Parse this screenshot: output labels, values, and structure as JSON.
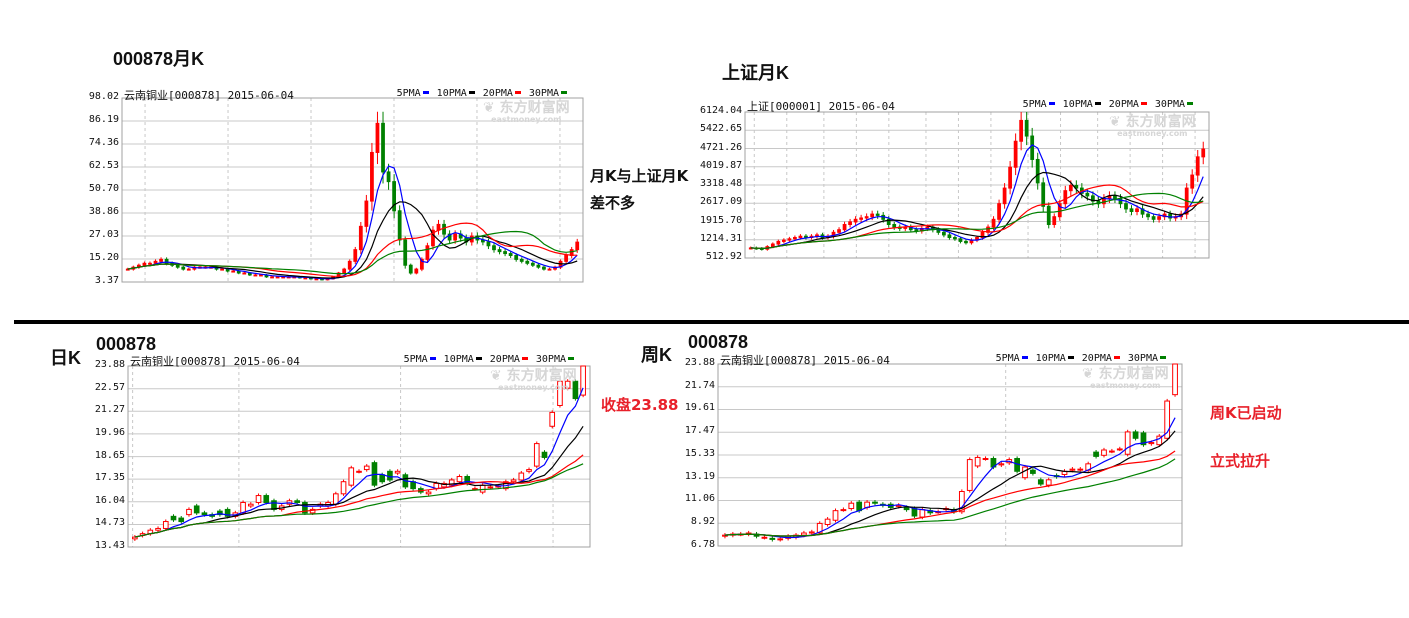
{
  "headings": {
    "monthly_000878": "000878月K",
    "monthly_sh": "上证月K",
    "daily_label": "日K",
    "daily_code": "000878",
    "weekly_label": "周K",
    "weekly_code": "000878"
  },
  "notes": {
    "compare_line1": "月K与上证月K",
    "compare_line2": "差不多",
    "close_price": "收盘23.88",
    "weekly_started": "周K已启动",
    "vertical_rise": "立式拉升"
  },
  "colors": {
    "up": "#ff0000",
    "down": "#008000",
    "ma5": "#0000ff",
    "ma10": "#000000",
    "ma20": "#ff0000",
    "ma30": "#008000",
    "note_red": "#e8202a"
  },
  "legend": [
    "5PMA",
    "10PMA",
    "20PMA",
    "30PMA"
  ],
  "watermark": {
    "cn": "东方财富网",
    "en": "eastmoney.com"
  },
  "charts": [
    {
      "id": "monthly-000878",
      "header": "云南铜业[000878] 2015-06-04",
      "y_ticks": [
        "98.02",
        "86.19",
        "74.36",
        "62.53",
        "50.70",
        "38.86",
        "27.03",
        "15.20",
        "3.37"
      ],
      "closes": [
        10,
        11,
        12,
        13,
        13,
        14,
        15,
        13,
        12,
        11,
        10,
        10,
        11,
        11,
        11,
        11,
        10,
        10,
        9,
        9,
        8,
        8,
        7,
        7,
        7,
        6,
        6,
        6,
        6,
        6,
        6,
        5.5,
        5.5,
        5,
        5,
        4.5,
        5,
        6,
        8,
        10,
        14,
        20,
        32,
        45,
        70,
        85,
        60,
        55,
        40,
        25,
        12,
        8,
        10,
        15,
        22,
        30,
        33,
        28,
        25,
        28,
        26,
        24,
        27,
        25,
        24,
        22,
        20,
        19,
        18,
        17,
        15,
        14,
        13,
        12,
        11,
        10,
        10,
        11,
        14,
        17,
        20,
        23.88
      ]
    },
    {
      "id": "monthly-sh",
      "header": "上证[000001] 2015-06-04",
      "y_ticks": [
        "6124.04",
        "5422.65",
        "4721.26",
        "4019.87",
        "3318.48",
        "2617.09",
        "1915.70",
        "1214.31",
        "512.92"
      ],
      "closes": [
        900,
        880,
        850,
        950,
        1050,
        1150,
        1200,
        1250,
        1300,
        1350,
        1300,
        1350,
        1400,
        1300,
        1350,
        1500,
        1600,
        1800,
        1900,
        2000,
        2050,
        2100,
        2200,
        2150,
        2000,
        1800,
        1700,
        1650,
        1700,
        1600,
        1550,
        1650,
        1700,
        1600,
        1500,
        1400,
        1300,
        1250,
        1150,
        1100,
        1200,
        1300,
        1500,
        1700,
        2000,
        2600,
        3200,
        4000,
        5000,
        5800,
        5200,
        4300,
        3400,
        2500,
        1800,
        2100,
        2600,
        3100,
        3300,
        3200,
        3000,
        2900,
        2700,
        2600,
        2800,
        2900,
        2800,
        2600,
        2400,
        2300,
        2400,
        2200,
        2100,
        2000,
        2100,
        2200,
        2050,
        2100,
        2200,
        3200,
        3700,
        4400,
        4700
      ]
    },
    {
      "id": "daily-000878",
      "header": "云南铜业[000878] 2015-06-04",
      "y_ticks": [
        "23.88",
        "22.57",
        "21.27",
        "19.96",
        "18.65",
        "17.35",
        "16.04",
        "14.73",
        "13.43"
      ],
      "candles": [
        [
          13.9,
          14.0
        ],
        [
          14.1,
          14.2
        ],
        [
          14.2,
          14.4
        ],
        [
          14.4,
          14.5
        ],
        [
          14.5,
          14.9
        ],
        [
          15.2,
          15.0
        ],
        [
          15.1,
          14.9
        ],
        [
          15.3,
          15.6
        ],
        [
          15.8,
          15.4
        ],
        [
          15.4,
          15.3
        ],
        [
          15.3,
          15.2
        ],
        [
          15.5,
          15.3
        ],
        [
          15.6,
          15.2
        ],
        [
          15.2,
          15.4
        ],
        [
          15.4,
          16.0
        ],
        [
          15.8,
          15.9
        ],
        [
          16.0,
          16.4
        ],
        [
          16.4,
          16.0
        ],
        [
          16.1,
          15.6
        ],
        [
          15.6,
          15.8
        ],
        [
          15.9,
          16.1
        ],
        [
          16.1,
          16.0
        ],
        [
          16.0,
          15.4
        ],
        [
          15.4,
          15.6
        ],
        [
          15.8,
          15.9
        ],
        [
          15.8,
          16.0
        ],
        [
          15.9,
          16.5
        ],
        [
          16.5,
          17.2
        ],
        [
          17.0,
          18.0
        ],
        [
          17.8,
          17.8
        ],
        [
          17.9,
          18.1
        ],
        [
          18.3,
          17.0
        ],
        [
          17.6,
          17.2
        ],
        [
          17.8,
          17.3
        ],
        [
          17.7,
          17.8
        ],
        [
          17.6,
          16.9
        ],
        [
          17.2,
          16.8
        ],
        [
          16.8,
          16.6
        ],
        [
          16.5,
          16.6
        ],
        [
          16.8,
          17.1
        ],
        [
          16.9,
          17.1
        ],
        [
          17.0,
          17.3
        ],
        [
          17.2,
          17.5
        ],
        [
          17.5,
          17.1
        ],
        [
          16.8,
          16.8
        ],
        [
          16.6,
          17.0
        ],
        [
          16.9,
          16.9
        ],
        [
          16.9,
          16.95
        ],
        [
          16.8,
          17.2
        ],
        [
          17.2,
          17.3
        ],
        [
          17.3,
          17.7
        ],
        [
          17.8,
          17.9
        ],
        [
          18.1,
          19.4
        ],
        [
          18.9,
          18.6
        ],
        [
          20.4,
          21.2
        ],
        [
          21.6,
          23.0
        ],
        [
          22.6,
          23.0
        ],
        [
          23.0,
          22.0
        ],
        [
          22.2,
          23.88
        ]
      ]
    },
    {
      "id": "weekly-000878",
      "header": "云南铜业[000878] 2015-06-04",
      "y_ticks": [
        "23.88",
        "21.74",
        "19.61",
        "17.47",
        "15.33",
        "13.19",
        "11.06",
        "8.92",
        "6.78"
      ],
      "candles": [
        [
          7.7,
          7.8
        ],
        [
          7.8,
          7.9
        ],
        [
          7.9,
          7.9
        ],
        [
          7.9,
          8.0
        ],
        [
          7.9,
          7.7
        ],
        [
          7.6,
          7.6
        ],
        [
          7.5,
          7.4
        ],
        [
          7.4,
          7.45
        ],
        [
          7.5,
          7.7
        ],
        [
          7.6,
          7.8
        ],
        [
          7.8,
          8.0
        ],
        [
          8.0,
          8.1
        ],
        [
          8.0,
          8.9
        ],
        [
          8.8,
          9.3
        ],
        [
          9.2,
          10.1
        ],
        [
          10.2,
          10.2
        ],
        [
          10.3,
          10.8
        ],
        [
          10.9,
          10.1
        ],
        [
          10.4,
          10.9
        ],
        [
          10.9,
          10.8
        ],
        [
          10.7,
          10.6
        ],
        [
          10.7,
          10.4
        ],
        [
          10.5,
          10.6
        ],
        [
          10.4,
          10.2
        ],
        [
          10.3,
          9.6
        ],
        [
          9.5,
          10.2
        ],
        [
          10.1,
          9.9
        ],
        [
          10.0,
          10.0
        ],
        [
          10.2,
          10.3
        ],
        [
          10.2,
          10.0
        ],
        [
          10.0,
          11.9
        ],
        [
          12.0,
          14.9
        ],
        [
          14.3,
          15.1
        ],
        [
          15.0,
          15.0
        ],
        [
          15.0,
          14.2
        ],
        [
          14.4,
          14.5
        ],
        [
          14.6,
          14.9
        ],
        [
          15.0,
          13.8
        ],
        [
          13.2,
          14.2
        ],
        [
          13.9,
          13.6
        ],
        [
          13.0,
          12.6
        ],
        [
          12.5,
          13.0
        ],
        [
          13.4,
          13.3
        ],
        [
          13.5,
          13.8
        ],
        [
          13.9,
          14.0
        ],
        [
          14.0,
          14.0
        ],
        [
          13.9,
          14.5
        ],
        [
          15.6,
          15.2
        ],
        [
          15.3,
          15.8
        ],
        [
          15.7,
          15.7
        ],
        [
          15.9,
          15.9
        ],
        [
          15.4,
          17.5
        ],
        [
          17.5,
          16.9
        ],
        [
          17.4,
          16.3
        ],
        [
          16.4,
          16.5
        ],
        [
          16.3,
          17.1
        ],
        [
          16.9,
          20.4
        ],
        [
          21.0,
          23.88
        ]
      ]
    }
  ]
}
